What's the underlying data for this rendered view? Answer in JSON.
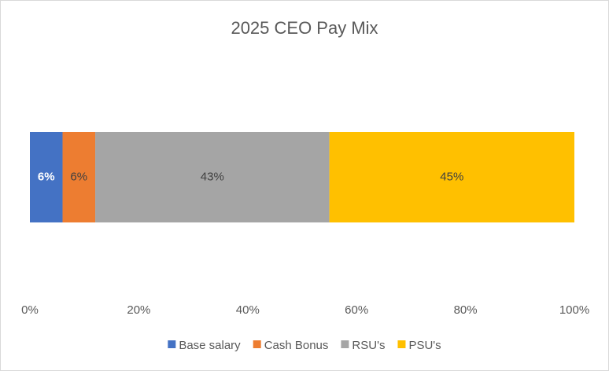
{
  "chart_data": {
    "type": "stacked_bar_horizontal",
    "title": "2025 CEO Pay Mix",
    "categories": [
      null
    ],
    "series": [
      {
        "name": "Base salary",
        "color": "#4472c4",
        "values": [
          6
        ],
        "value_labels": [
          "6%"
        ]
      },
      {
        "name": "Cash Bonus",
        "color": "#ed7d31",
        "values": [
          6
        ],
        "value_labels": [
          "6%"
        ]
      },
      {
        "name": "RSU's",
        "color": "#a5a5a5",
        "values": [
          43
        ],
        "value_labels": [
          "43%"
        ]
      },
      {
        "name": "PSU's",
        "color": "#ffc000",
        "values": [
          45
        ],
        "value_labels": [
          "45%"
        ]
      }
    ],
    "xlim": [
      0,
      100
    ],
    "xticks": [
      {
        "value": 0,
        "label": "0%"
      },
      {
        "value": 20,
        "label": "20%"
      },
      {
        "value": 40,
        "label": "40%"
      },
      {
        "value": 60,
        "label": "60%"
      },
      {
        "value": 80,
        "label": "80%"
      },
      {
        "value": 100,
        "label": "100%"
      }
    ],
    "grid": false,
    "legend": "bottom"
  }
}
